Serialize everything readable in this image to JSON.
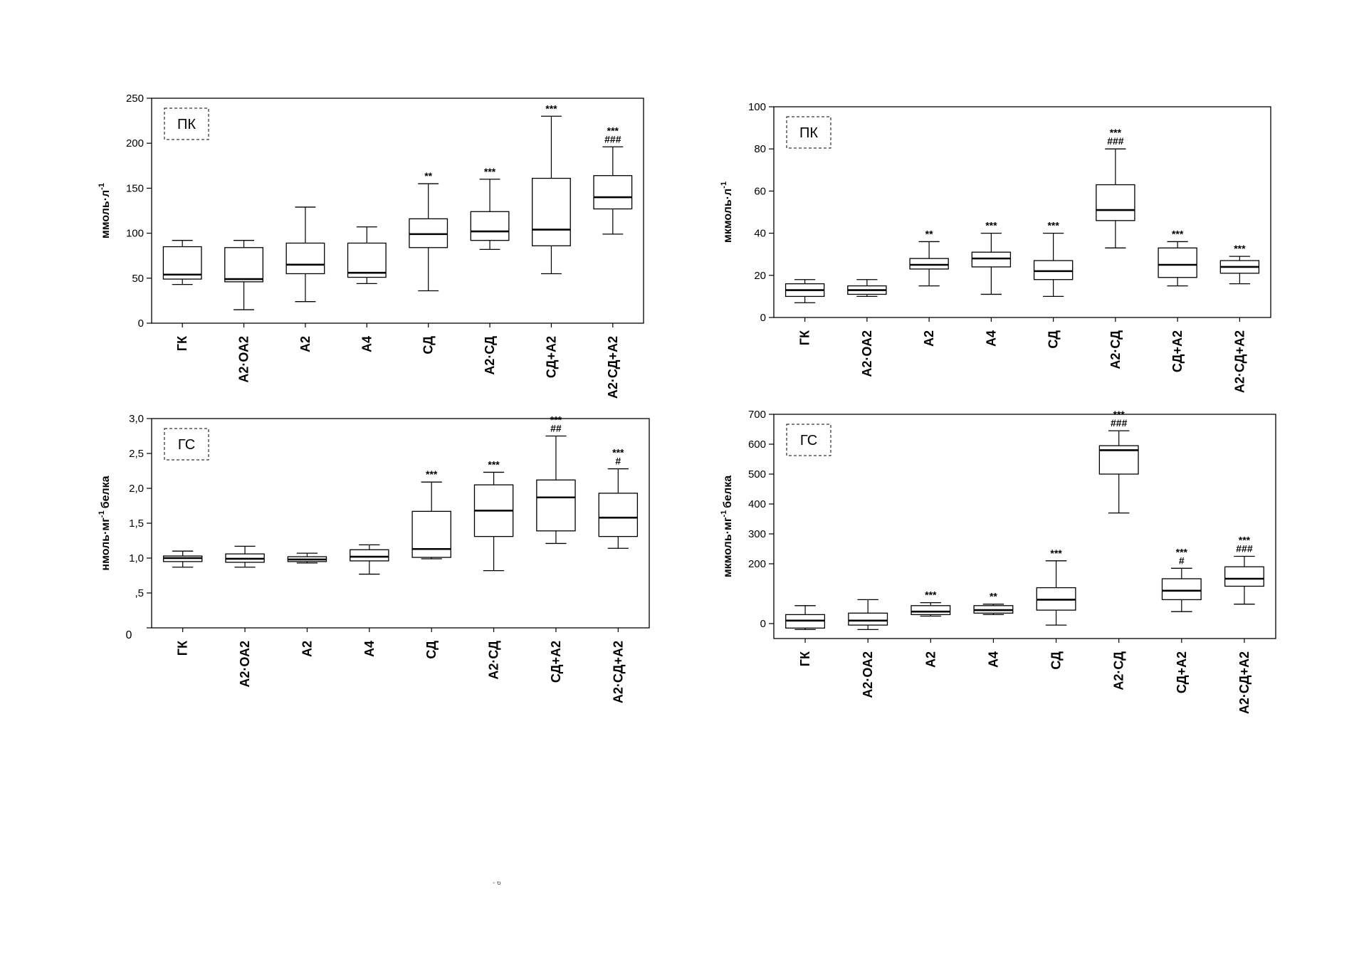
{
  "chart_data": [
    {
      "type": "box",
      "panel_label": "ПК",
      "ylabel": "ммоль·л",
      "ylabel_sup": "-1",
      "ylim": [
        0,
        250
      ],
      "yticks": [
        "0",
        "50",
        "100",
        "150",
        "200",
        "250"
      ],
      "categories": [
        "ГК",
        "А2·ОА2",
        "А2",
        "А4",
        "СД",
        "А2·СД",
        "СД+А2",
        "А2·СД+А2"
      ],
      "boxes": [
        {
          "min": 43,
          "q1": 49,
          "median": 54,
          "q3": 85,
          "max": 92
        },
        {
          "min": 15,
          "q1": 46,
          "median": 49,
          "q3": 84,
          "max": 92
        },
        {
          "min": 24,
          "q1": 55,
          "median": 65,
          "q3": 89,
          "max": 129
        },
        {
          "min": 44,
          "q1": 51,
          "median": 56,
          "q3": 89,
          "max": 107
        },
        {
          "min": 36,
          "q1": 84,
          "median": 99,
          "q3": 116,
          "max": 155
        },
        {
          "min": 82,
          "q1": 92,
          "median": 102,
          "q3": 124,
          "max": 160
        },
        {
          "min": 55,
          "q1": 86,
          "median": 104,
          "q3": 161,
          "max": 230
        },
        {
          "min": 99,
          "q1": 127,
          "median": 140,
          "q3": 164,
          "max": 196
        }
      ],
      "annotations": [
        "",
        "",
        "",
        "",
        "**",
        "***",
        "***",
        "***\n###"
      ]
    },
    {
      "type": "box",
      "panel_label": "ПК",
      "ylabel": "мкмоль·л",
      "ylabel_sup": "-1",
      "ylim": [
        0,
        100
      ],
      "yticks": [
        "0",
        "20",
        "40",
        "60",
        "80",
        "100"
      ],
      "categories": [
        "ГК",
        "А2·ОА2",
        "А2",
        "А4",
        "СД",
        "А2·СД",
        "СД+А2",
        "А2·СД+А2"
      ],
      "boxes": [
        {
          "min": 7,
          "q1": 10,
          "median": 13,
          "q3": 16,
          "max": 18
        },
        {
          "min": 10,
          "q1": 11,
          "median": 13,
          "q3": 15,
          "max": 18
        },
        {
          "min": 15,
          "q1": 23,
          "median": 25,
          "q3": 28,
          "max": 36
        },
        {
          "min": 11,
          "q1": 24,
          "median": 28,
          "q3": 31,
          "max": 40
        },
        {
          "min": 10,
          "q1": 18,
          "median": 22,
          "q3": 27,
          "max": 40
        },
        {
          "min": 33,
          "q1": 46,
          "median": 51,
          "q3": 63,
          "max": 80
        },
        {
          "min": 15,
          "q1": 19,
          "median": 25,
          "q3": 33,
          "max": 36
        },
        {
          "min": 16,
          "q1": 21,
          "median": 24,
          "q3": 27,
          "max": 29
        }
      ],
      "annotations": [
        "",
        "",
        "**",
        "***",
        "***",
        "***\n###",
        "***",
        "***"
      ]
    },
    {
      "type": "box",
      "panel_label": "ГС",
      "ylabel": "нмоль·мг",
      "ylabel_sup": "-1",
      "ylabel_tail": "белка",
      "ylim": [
        0,
        3
      ],
      "yticks": [
        "",
        ",5",
        "1,0",
        "1,5",
        "2,0",
        "2,5",
        "3,0"
      ],
      "zero_label": "0",
      "categories": [
        "ГК",
        "А2·ОА2",
        "А2",
        "А4",
        "СД",
        "А2·СД",
        "СД+А2",
        "А2·СД+А2"
      ],
      "boxes": [
        {
          "min": 0.87,
          "q1": 0.95,
          "median": 1.0,
          "q3": 1.03,
          "max": 1.1
        },
        {
          "min": 0.87,
          "q1": 0.94,
          "median": 0.99,
          "q3": 1.06,
          "max": 1.17
        },
        {
          "min": 0.93,
          "q1": 0.95,
          "median": 0.98,
          "q3": 1.02,
          "max": 1.07
        },
        {
          "min": 0.77,
          "q1": 0.96,
          "median": 1.02,
          "q3": 1.12,
          "max": 1.19
        },
        {
          "min": 0.99,
          "q1": 1.01,
          "median": 1.13,
          "q3": 1.67,
          "max": 2.09
        },
        {
          "min": 0.82,
          "q1": 1.31,
          "median": 1.68,
          "q3": 2.05,
          "max": 2.23
        },
        {
          "min": 1.21,
          "q1": 1.39,
          "median": 1.87,
          "q3": 2.12,
          "max": 2.75
        },
        {
          "min": 1.14,
          "q1": 1.31,
          "median": 1.58,
          "q3": 1.93,
          "max": 2.28
        }
      ],
      "annotations": [
        "",
        "",
        "",
        "",
        "***",
        "***",
        "***\n##",
        "***\n#"
      ]
    },
    {
      "type": "box",
      "panel_label": "ГС",
      "ylabel": "мкмоль·мг",
      "ylabel_sup": "-1",
      "ylabel_tail": "белка",
      "ylim": [
        -50,
        700
      ],
      "yticks": [
        "0",
        "200",
        "300",
        "400",
        "500",
        "600",
        "700"
      ],
      "ytick_values": [
        0,
        200,
        300,
        400,
        500,
        600,
        700
      ],
      "categories": [
        "ГК",
        "А2·ОА2",
        "А2",
        "А4",
        "СД",
        "А2·СД",
        "СД+А2",
        "А2·СД+А2"
      ],
      "boxes": [
        {
          "min": -20,
          "q1": -15,
          "median": 10,
          "q3": 30,
          "max": 60
        },
        {
          "min": -20,
          "q1": -5,
          "median": 10,
          "q3": 35,
          "max": 80
        },
        {
          "min": 25,
          "q1": 30,
          "median": 40,
          "q3": 60,
          "max": 70
        },
        {
          "min": 30,
          "q1": 35,
          "median": 45,
          "q3": 60,
          "max": 65
        },
        {
          "min": -5,
          "q1": 45,
          "median": 80,
          "q3": 120,
          "max": 210
        },
        {
          "min": 370,
          "q1": 500,
          "median": 580,
          "q3": 595,
          "max": 645
        },
        {
          "min": 40,
          "q1": 80,
          "median": 110,
          "q3": 150,
          "max": 185
        },
        {
          "min": 65,
          "q1": 125,
          "median": 150,
          "q3": 190,
          "max": 225
        }
      ],
      "annotations": [
        "",
        "",
        "***",
        "**",
        "***",
        "***\n###",
        "***\n#",
        "***\n###"
      ]
    }
  ],
  "page_fragment": "- 6"
}
